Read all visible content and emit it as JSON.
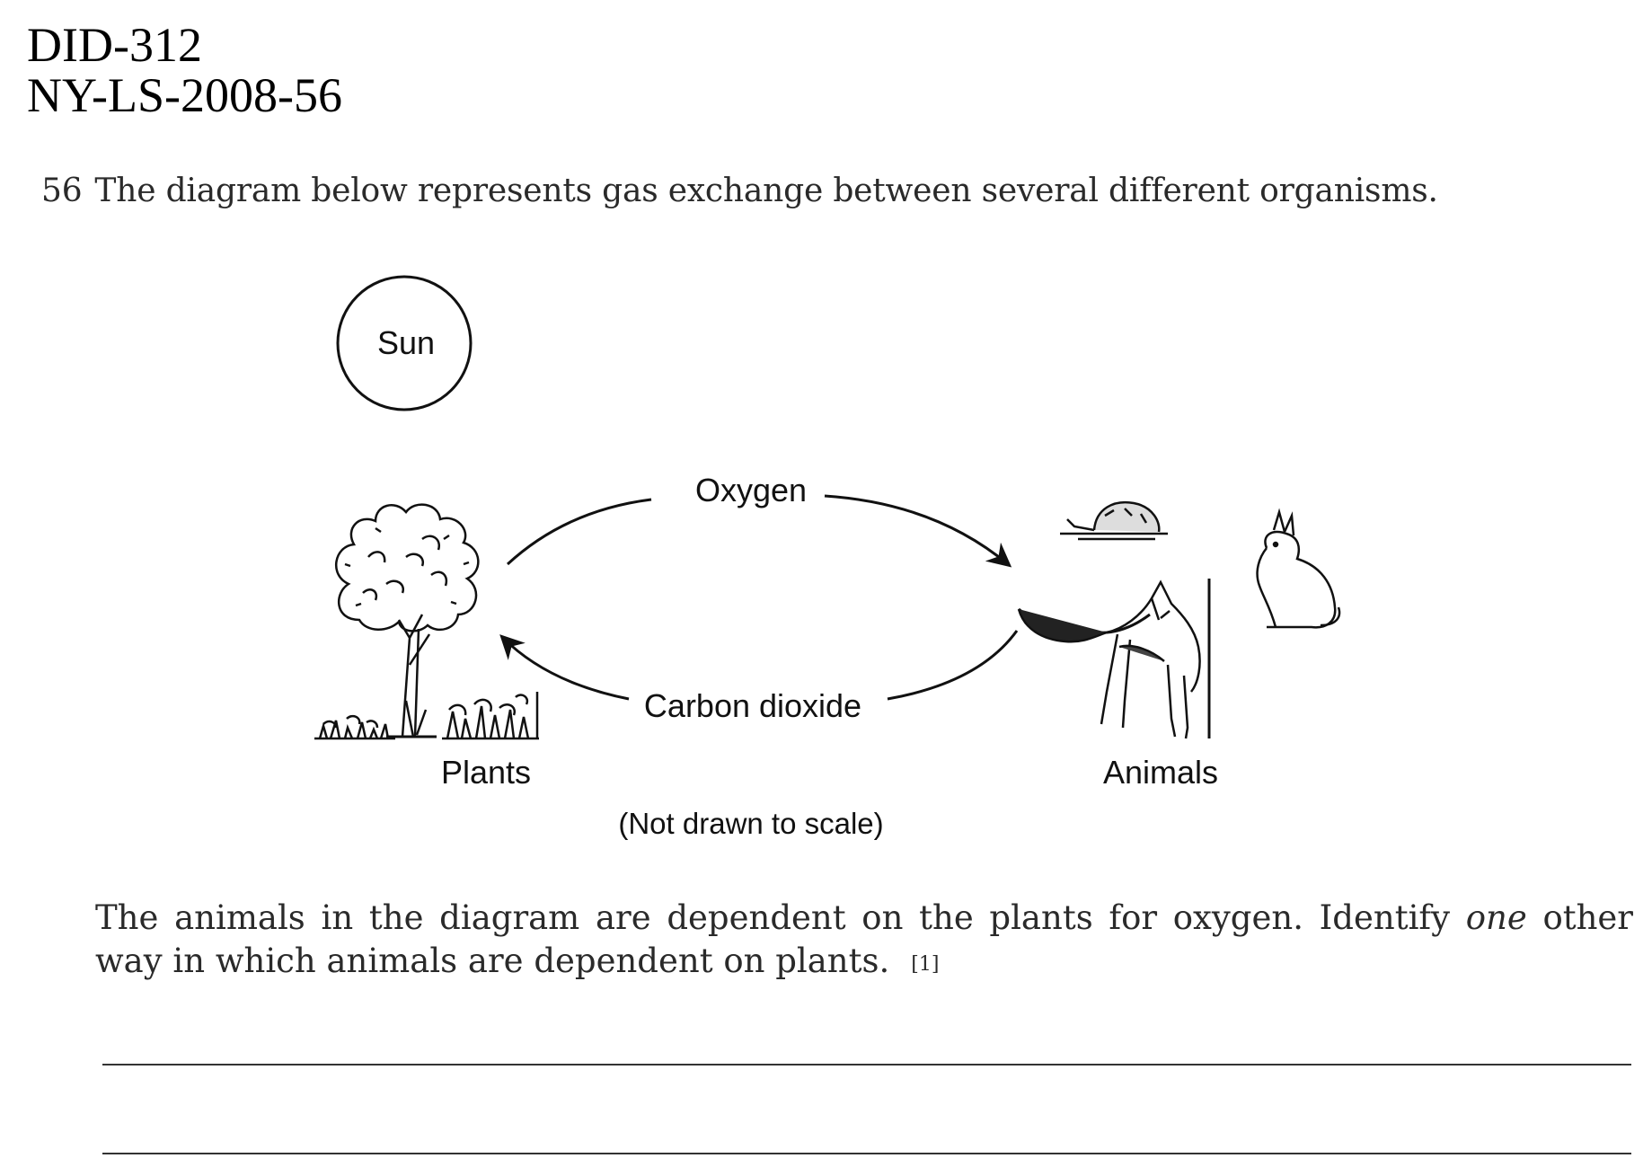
{
  "header": {
    "doc_id": "DID-312",
    "doc_code": "NY-LS-2008-56"
  },
  "question": {
    "number": "56",
    "text": "The diagram below represents gas exchange between several different organisms."
  },
  "diagram": {
    "sun_label": "Sun",
    "oxygen_label": "Oxygen",
    "carbon_dioxide_label": "Carbon dioxide",
    "plants_label": "Plants",
    "animals_label": "Animals",
    "scale_note": "(Not drawn to scale)"
  },
  "prompt": {
    "text_before": "The animals in the diagram are dependent on the plants for oxygen. Identify ",
    "emphasis": "one",
    "text_after": " other way in which animals are dependent on plants.",
    "points": "[1]"
  },
  "answer_lines": 2
}
